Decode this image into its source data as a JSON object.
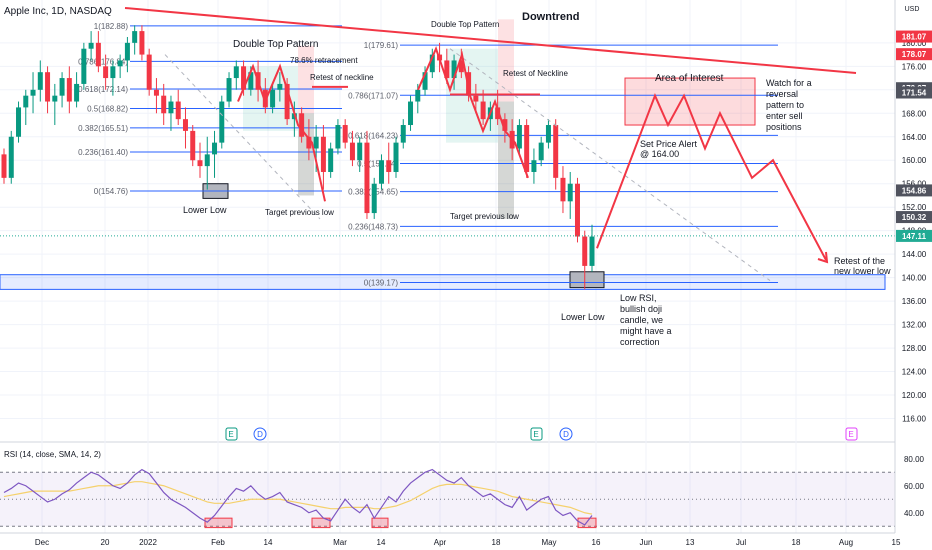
{
  "chart_data": {
    "type": "candlestick",
    "title": "Apple Inc, 1D, NASDAQ",
    "currency": "USD",
    "grid": true,
    "y_axis": {
      "side": "right",
      "range": [
        112,
        192
      ],
      "ticks": [
        116,
        120,
        124,
        128,
        132,
        136,
        140,
        144,
        148,
        152,
        156,
        160,
        164,
        168,
        172,
        176,
        180
      ]
    },
    "x_axis": {
      "ticks": [
        "Dec",
        "20",
        "2022",
        "Feb",
        "14",
        "Mar",
        "14",
        "Apr",
        "18",
        "May",
        "16",
        "Jun",
        "13",
        "Jul",
        "18",
        "Aug",
        "15"
      ]
    },
    "price_badges": [
      {
        "value": "181.07",
        "color": "#f23645"
      },
      {
        "value": "178.07",
        "color": "#f23645"
      },
      {
        "value": "172.27",
        "color": "#50535e"
      },
      {
        "value": "171.54",
        "color": "#50535e"
      },
      {
        "value": "154.86",
        "color": "#50535e"
      },
      {
        "value": "150.32",
        "color": "#50535e"
      },
      {
        "value": "147.11",
        "color": "#22ab94"
      }
    ],
    "fib_retracement_1": {
      "levels": [
        {
          "ratio": "1",
          "price": 182.88
        },
        {
          "ratio": "0.786",
          "price": 176.84
        },
        {
          "ratio": "0.618",
          "price": 172.14
        },
        {
          "ratio": "0.5",
          "price": 168.82
        },
        {
          "ratio": "0.382",
          "price": 165.51
        },
        {
          "ratio": "0.236",
          "price": 161.4
        },
        {
          "ratio": "0",
          "price": 154.76
        }
      ]
    },
    "fib_retracement_2": {
      "levels": [
        {
          "ratio": "1",
          "price": 179.61
        },
        {
          "ratio": "0.786",
          "price": 171.07
        },
        {
          "ratio": "0.618",
          "price": 164.23
        },
        {
          "ratio": "0.5",
          "price": 159.44
        },
        {
          "ratio": "0.382",
          "price": 154.65
        },
        {
          "ratio": "0.236",
          "price": 148.73
        },
        {
          "ratio": "0",
          "price": 139.17
        }
      ]
    },
    "annotations": {
      "double_top_1": "Double Top Pattern",
      "retracement": "78.6% retracement",
      "retest_1": "Retest of neckline",
      "lower_low_1": "Lower Low",
      "target_1": "Target previous low",
      "double_top_2": "Double Top Pattern",
      "downtrend": "Downtrend",
      "retest_2": "Retest of Neckline",
      "target_2": "Target previous low",
      "area_of_interest": "Area of Interest",
      "watch": "Watch for a reversal pattern to enter sell positions",
      "alert": "Set Price Alert @ 164.00",
      "lower_low_2": "Lower Low",
      "low_rsi": "Low RSI, bullish doji candle, we might have a correction",
      "retest_lower_low": "Retest of the new lower low"
    },
    "event_markers": [
      {
        "label": "E",
        "kind": "earnings"
      },
      {
        "label": "D",
        "kind": "dividend"
      },
      {
        "label": "E",
        "kind": "earnings"
      },
      {
        "label": "D",
        "kind": "dividend"
      },
      {
        "label": "E",
        "kind": "earnings"
      }
    ],
    "candles": [
      [
        161,
        162,
        156,
        157
      ],
      [
        157,
        165,
        156,
        164
      ],
      [
        164,
        170,
        163,
        169
      ],
      [
        169,
        172,
        166,
        171
      ],
      [
        171,
        175,
        168,
        172
      ],
      [
        172,
        177,
        170,
        175
      ],
      [
        175,
        176,
        168,
        170
      ],
      [
        170,
        173,
        166,
        171
      ],
      [
        171,
        175,
        169,
        174
      ],
      [
        174,
        176,
        168,
        170
      ],
      [
        170,
        175,
        169,
        173
      ],
      [
        173,
        180,
        172,
        179
      ],
      [
        179,
        182,
        177,
        180
      ],
      [
        180,
        182,
        175,
        176
      ],
      [
        176,
        178,
        172,
        174
      ],
      [
        174,
        177,
        171,
        176
      ],
      [
        176,
        178,
        174,
        177
      ],
      [
        177,
        181,
        175,
        180
      ],
      [
        180,
        183,
        178,
        182
      ],
      [
        182,
        183,
        177,
        178
      ],
      [
        178,
        179,
        171,
        172
      ],
      [
        172,
        174,
        168,
        171
      ],
      [
        171,
        173,
        166,
        168
      ],
      [
        168,
        171,
        165,
        170
      ],
      [
        170,
        172,
        166,
        167
      ],
      [
        167,
        169,
        162,
        165
      ],
      [
        165,
        166,
        159,
        160
      ],
      [
        160,
        163,
        157,
        159
      ],
      [
        159,
        164,
        155,
        161
      ],
      [
        161,
        165,
        157,
        163
      ],
      [
        163,
        171,
        162,
        170
      ],
      [
        170,
        175,
        169,
        174
      ],
      [
        174,
        177,
        172,
        176
      ],
      [
        176,
        177,
        171,
        172
      ],
      [
        172,
        176,
        171,
        175
      ],
      [
        175,
        177,
        170,
        172
      ],
      [
        172,
        174,
        168,
        169
      ],
      [
        169,
        173,
        168,
        172
      ],
      [
        172,
        175,
        170,
        173
      ],
      [
        173,
        174,
        166,
        167
      ],
      [
        167,
        170,
        164,
        168
      ],
      [
        168,
        169,
        163,
        164
      ],
      [
        164,
        167,
        160,
        162
      ],
      [
        162,
        166,
        158,
        164
      ],
      [
        164,
        166,
        155,
        158
      ],
      [
        158,
        163,
        157,
        162
      ],
      [
        162,
        167,
        161,
        166
      ],
      [
        166,
        167,
        162,
        163
      ],
      [
        163,
        165,
        159,
        160
      ],
      [
        160,
        164,
        158,
        163
      ],
      [
        163,
        165,
        150,
        151
      ],
      [
        151,
        157,
        150,
        156
      ],
      [
        156,
        161,
        155,
        160
      ],
      [
        160,
        163,
        156,
        158
      ],
      [
        158,
        164,
        157,
        163
      ],
      [
        163,
        167,
        162,
        166
      ],
      [
        166,
        171,
        165,
        170
      ],
      [
        170,
        173,
        168,
        172
      ],
      [
        172,
        176,
        171,
        175
      ],
      [
        175,
        179,
        174,
        178
      ],
      [
        178,
        180,
        175,
        177
      ],
      [
        177,
        179,
        173,
        174
      ],
      [
        174,
        178,
        172,
        177
      ],
      [
        177,
        179,
        174,
        175
      ],
      [
        175,
        176,
        170,
        171
      ],
      [
        171,
        173,
        168,
        170
      ],
      [
        170,
        172,
        166,
        167
      ],
      [
        167,
        170,
        165,
        169
      ],
      [
        169,
        172,
        166,
        167
      ],
      [
        167,
        168,
        163,
        165
      ],
      [
        165,
        167,
        160,
        162
      ],
      [
        162,
        167,
        161,
        166
      ],
      [
        166,
        167,
        157,
        158
      ],
      [
        158,
        162,
        156,
        160
      ],
      [
        160,
        164,
        159,
        163
      ],
      [
        163,
        167,
        162,
        166
      ],
      [
        166,
        167,
        155,
        157
      ],
      [
        157,
        159,
        151,
        153
      ],
      [
        153,
        158,
        150,
        156
      ],
      [
        156,
        157,
        146,
        147
      ],
      [
        147,
        148,
        138,
        142
      ],
      [
        142,
        149,
        141,
        147
      ]
    ]
  },
  "rsi_panel": {
    "label": "RSI (14, close, SMA, 14, 2)",
    "ticks": [
      "80.00",
      "60.00",
      "40.00"
    ],
    "rsi_values": [
      55,
      58,
      62,
      60,
      56,
      52,
      48,
      50,
      54,
      57,
      62,
      66,
      70,
      68,
      64,
      60,
      58,
      62,
      68,
      72,
      69,
      62,
      55,
      50,
      47,
      44,
      40,
      36,
      33,
      38,
      45,
      52,
      58,
      56,
      60,
      54,
      50,
      52,
      55,
      48,
      46,
      44,
      40,
      42,
      36,
      34,
      42,
      50,
      44,
      40,
      46,
      36,
      44,
      52,
      48,
      56,
      62,
      66,
      70,
      72,
      68,
      64,
      62,
      66,
      60,
      56,
      52,
      54,
      50,
      46,
      44,
      52,
      42,
      46,
      50,
      52,
      42,
      38,
      40,
      34,
      31,
      38
    ],
    "sma_values": [
      52,
      53,
      54,
      55,
      56,
      56,
      56,
      56,
      56,
      56,
      57,
      58,
      59,
      60,
      60,
      60,
      61,
      62,
      63,
      63,
      62,
      61,
      60,
      58,
      56,
      54,
      52,
      50,
      48,
      47,
      47,
      47,
      48,
      49,
      50,
      50,
      50,
      50,
      50,
      49,
      48,
      47,
      46,
      45,
      44,
      43,
      43,
      44,
      44,
      44,
      44,
      43,
      43,
      44,
      45,
      47,
      49,
      52,
      55,
      58,
      60,
      61,
      61,
      61,
      60,
      59,
      58,
      57,
      56,
      54,
      52,
      51,
      50,
      49,
      48,
      47,
      46,
      45,
      44,
      42,
      40,
      39
    ]
  }
}
